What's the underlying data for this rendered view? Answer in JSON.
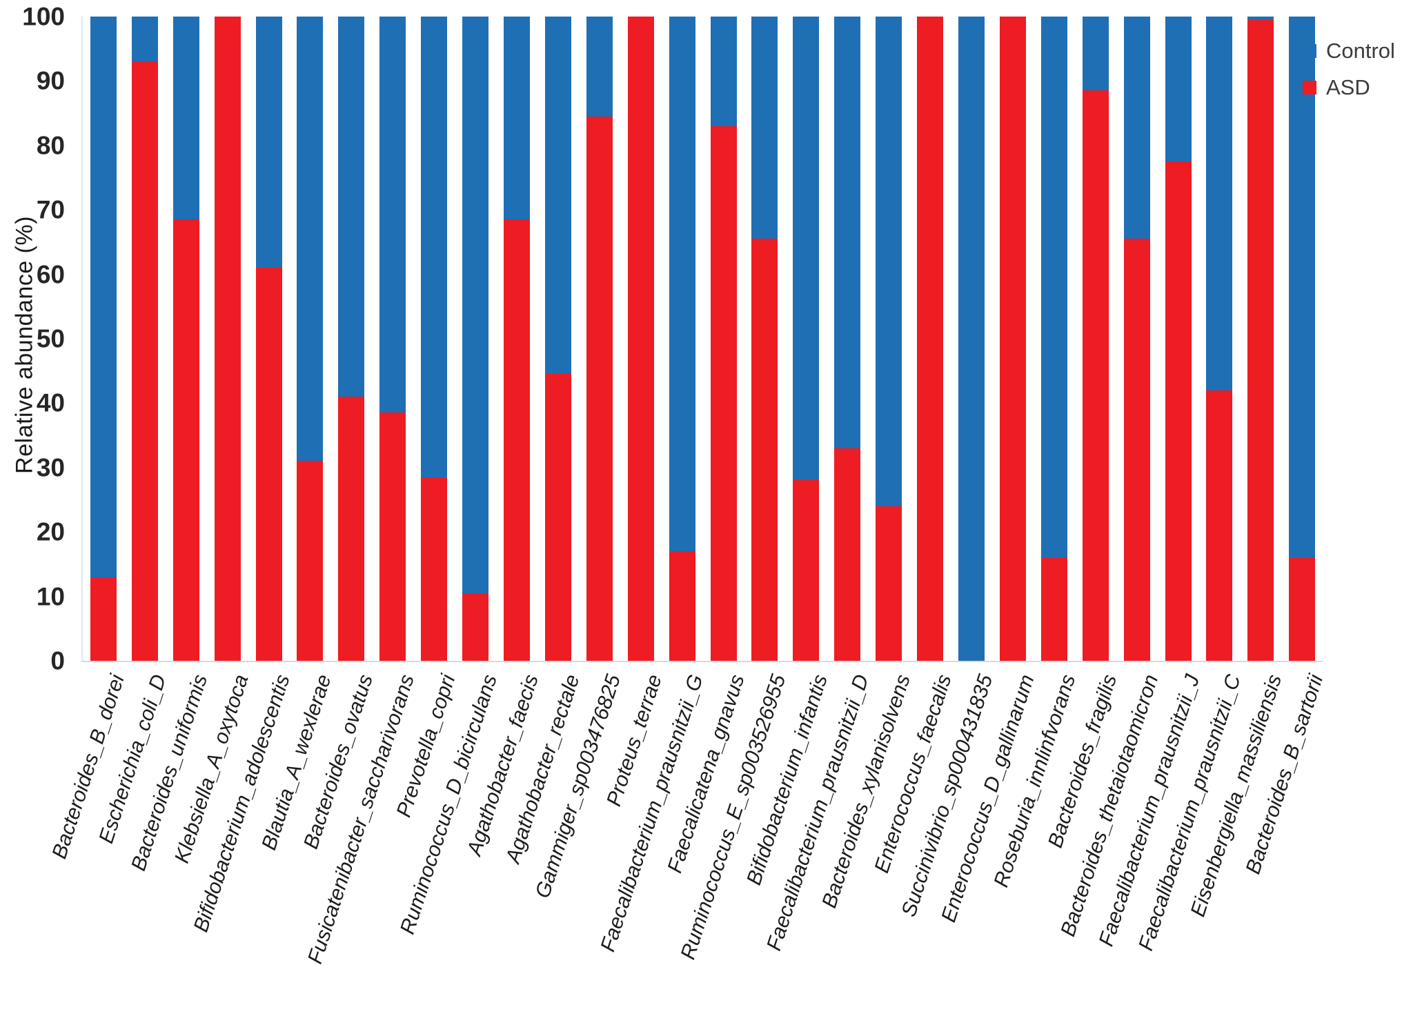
{
  "chart_data": {
    "type": "bar",
    "stacked": true,
    "percent_stacked": true,
    "title": "",
    "xlabel": "",
    "ylabel": "Relative abundance (%)",
    "ylim": [
      0,
      100
    ],
    "yticks": [
      0,
      10,
      20,
      30,
      40,
      50,
      60,
      70,
      80,
      90,
      100
    ],
    "grid": false,
    "legend_position": "top-right",
    "categories": [
      "Bacteroides_B_dorei",
      "Escherichia_coli_D",
      "Bacteroides_uniformis",
      "Klebsiella_A_oxytoca",
      "Bifidobacterium_adolescentis",
      "Blautia_A_wexlerae",
      "Bacteroides_ovatus",
      "Fusicatenibacter_saccharivorans",
      "Prevotella_copri",
      "Ruminococcus_D_bicirculans",
      "Agathobacter_faecis",
      "Agathobacter_rectale",
      "Gammiger_sp003476825",
      "Proteus_terrae",
      "Faecalibacterium_prausnitzii_G",
      "Faecalicatena_gnavus",
      "Ruminococcus_E_sp003526955",
      "Bifidobacterium_infantis",
      "Faecalibacterium_prausnitzii_D",
      "Bacteroides_xylanisolvens",
      "Enterococcus_faecalis",
      "Succinivibrio_sp000431835",
      "Enterococcus_D_gallinarum",
      "Roseburia_innlinfvorans",
      "Bacteroides_fragilis",
      "Bacteroides_thetaiotaomicron",
      "Faecalibacterium_prausnitzii_J",
      "Faecalibacterium_prausnitzii_C",
      "Eisenbergiella_massiliensis",
      "Bacteroides_B_sartorii"
    ],
    "series": [
      {
        "name": "Control",
        "color": "#1f6fb5",
        "values": [
          87,
          7,
          31.5,
          0,
          39,
          69,
          59,
          61.5,
          71.5,
          89.5,
          31.5,
          55.5,
          15.5,
          0,
          83,
          17,
          34.5,
          72,
          67,
          76,
          0,
          100,
          0,
          84,
          11.5,
          34.5,
          22.5,
          58,
          0.5,
          84
        ]
      },
      {
        "name": "ASD",
        "color": "#ee1c23",
        "values": [
          13,
          93,
          68.5,
          100,
          61,
          31,
          41,
          38.5,
          28.5,
          10.5,
          68.5,
          44.5,
          84.5,
          100,
          17,
          83,
          65.5,
          28,
          33,
          24,
          100,
          0,
          100,
          16,
          88.5,
          65.5,
          77.5,
          42,
          99.5,
          16
        ]
      }
    ]
  },
  "axes": {
    "y_title": "Relative abundance (%)"
  },
  "legend": {
    "items": [
      {
        "label": "Control",
        "color": "#1f6fb5"
      },
      {
        "label": "ASD",
        "color": "#ee1c23"
      }
    ]
  }
}
